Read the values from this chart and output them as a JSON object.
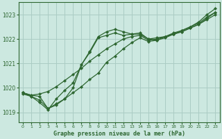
{
  "xlabel": "Graphe pression niveau de la mer (hPa)",
  "background_color": "#cce8e0",
  "grid_color": "#aaccc4",
  "line_color": "#2d6630",
  "xlim": [
    -0.5,
    23.5
  ],
  "ylim": [
    1018.6,
    1023.5
  ],
  "yticks": [
    1019,
    1020,
    1021,
    1022,
    1023
  ],
  "xticks": [
    0,
    1,
    2,
    3,
    4,
    5,
    6,
    7,
    8,
    9,
    10,
    11,
    12,
    13,
    14,
    15,
    16,
    17,
    18,
    19,
    20,
    21,
    22,
    23
  ],
  "series": [
    [
      1019.8,
      1019.7,
      1019.75,
      1019.85,
      1020.05,
      1020.3,
      1020.55,
      1020.8,
      1021.1,
      1021.35,
      1021.6,
      1021.8,
      1022.0,
      1022.1,
      1022.15,
      1021.95,
      1022.0,
      1022.1,
      1022.2,
      1022.3,
      1022.45,
      1022.6,
      1022.85,
      1023.1
    ],
    [
      1019.8,
      1019.7,
      1019.65,
      1019.15,
      1019.3,
      1019.55,
      1019.8,
      1020.05,
      1020.35,
      1020.6,
      1021.05,
      1021.3,
      1021.6,
      1021.85,
      1022.05,
      1021.9,
      1021.95,
      1022.05,
      1022.2,
      1022.3,
      1022.45,
      1022.6,
      1022.8,
      1023.0
    ],
    [
      1019.8,
      1019.65,
      1019.4,
      1019.1,
      1019.55,
      1019.9,
      1020.2,
      1020.95,
      1021.45,
      1022.05,
      1022.15,
      1022.25,
      1022.15,
      1022.2,
      1022.2,
      1022.0,
      1022.05,
      1022.1,
      1022.25,
      1022.35,
      1022.5,
      1022.65,
      1022.9,
      1023.1
    ],
    [
      1019.75,
      1019.65,
      1019.5,
      1019.15,
      1019.35,
      1019.55,
      1020.0,
      1020.95,
      1021.5,
      1022.1,
      1022.3,
      1022.4,
      1022.3,
      1022.2,
      1022.25,
      1022.0,
      1021.95,
      1022.1,
      1022.2,
      1022.35,
      1022.5,
      1022.7,
      1023.0,
      1023.25
    ]
  ]
}
